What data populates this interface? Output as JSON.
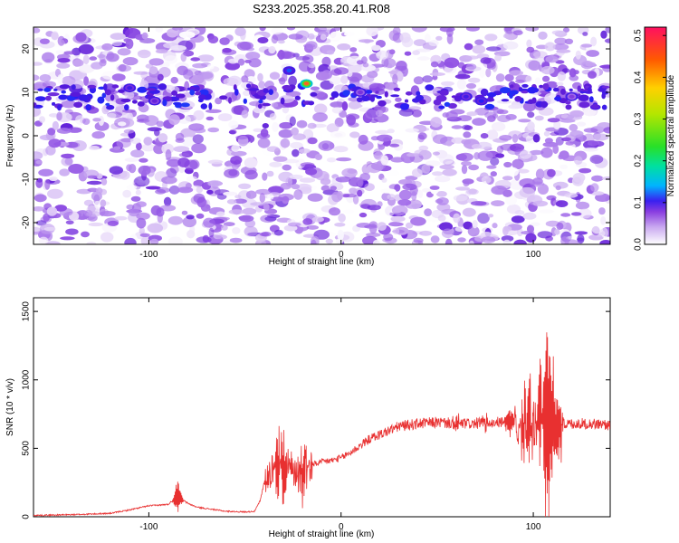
{
  "title": "S233.2025.358.20.41.R08",
  "chart_data": [
    {
      "type": "heatmap",
      "xlabel": "Height of straight line (km)",
      "ylabel": "Frequency (Hz)",
      "xlim": [
        -160,
        140
      ],
      "ylim": [
        -25,
        25
      ],
      "xticks": [
        -100,
        0,
        100
      ],
      "yticks": [
        -20,
        -10,
        0,
        10,
        20
      ],
      "colorbar": {
        "label": "Normalized spectral amplitude",
        "range": [
          0.0,
          0.52
        ],
        "ticks": [
          "0.0",
          "0.1",
          "0.2",
          "0.3",
          "0.4",
          "0.5"
        ],
        "colormap": [
          "#ffffff",
          "#c9a8f0",
          "#8a3ee0",
          "#5b19d8",
          "#1a1aff",
          "#00b4ff",
          "#00e0a0",
          "#28e028",
          "#b4e600",
          "#ffd000",
          "#ff5a00",
          "#ff1040",
          "#ff2080"
        ]
      },
      "features": {
        "band_frequency": 9,
        "band_x_range": [
          -160,
          140
        ],
        "hot_spots": [
          {
            "x": -18,
            "y": 12,
            "value": 0.5
          },
          {
            "x": -27,
            "y": 15,
            "value": 0.22
          },
          {
            "x": -110,
            "y": 11,
            "value": 0.18
          },
          {
            "x": -97,
            "y": 8,
            "value": 0.15
          },
          {
            "x": 65,
            "y": 9,
            "value": 0.18
          },
          {
            "x": 73,
            "y": 8,
            "value": 0.2
          },
          {
            "x": 10,
            "y": 10,
            "value": 0.13
          },
          {
            "x": 120,
            "y": 9,
            "value": 0.12
          }
        ]
      }
    },
    {
      "type": "line",
      "xlabel": "Height of straight line (km)",
      "ylabel": "SNR (10 * v/v)",
      "xlim": [
        -160,
        140
      ],
      "ylim": [
        0,
        1600
      ],
      "xticks": [
        -100,
        0,
        100
      ],
      "yticks": [
        0,
        500,
        1000,
        1500
      ],
      "color": "#e83030",
      "series": [
        {
          "x": [
            -160,
            -140,
            -120,
            -110,
            -100,
            -90,
            -85,
            -80,
            -75,
            -70,
            -60,
            -50,
            -45,
            -42,
            -40,
            -38,
            -35,
            -32,
            -30,
            -28,
            -25,
            -22,
            -20,
            -18,
            -15,
            -10,
            -5,
            0,
            5,
            10,
            15,
            20,
            25,
            30,
            40,
            50,
            60,
            70,
            80,
            90,
            95,
            98,
            100,
            102,
            104,
            106,
            108,
            110,
            112,
            115,
            120,
            130,
            140
          ],
          "y": [
            10,
            15,
            25,
            50,
            80,
            90,
            150,
            100,
            70,
            60,
            40,
            35,
            40,
            120,
            250,
            300,
            380,
            420,
            400,
            380,
            350,
            320,
            330,
            360,
            380,
            400,
            410,
            430,
            470,
            520,
            570,
            600,
            630,
            660,
            680,
            690,
            680,
            680,
            690,
            690,
            690,
            700,
            650,
            700,
            750,
            700,
            700,
            720,
            700,
            680,
            680,
            680,
            670
          ]
        }
      ],
      "spikes": [
        {
          "x": -85,
          "amp": 130
        },
        {
          "x": -33,
          "amp": 260
        },
        {
          "x": -30,
          "amp": 230
        },
        {
          "x": -20,
          "amp": 200
        },
        {
          "x": 60,
          "amp": 60
        },
        {
          "x": 75,
          "amp": 50
        },
        {
          "x": 88,
          "amp": 120
        },
        {
          "x": 95,
          "amp": 250
        },
        {
          "x": 98,
          "amp": 300
        },
        {
          "x": 104,
          "amp": 360
        },
        {
          "x": 107,
          "amp": 880
        },
        {
          "x": 110,
          "amp": 450
        },
        {
          "x": 113,
          "amp": 300
        }
      ]
    }
  ]
}
